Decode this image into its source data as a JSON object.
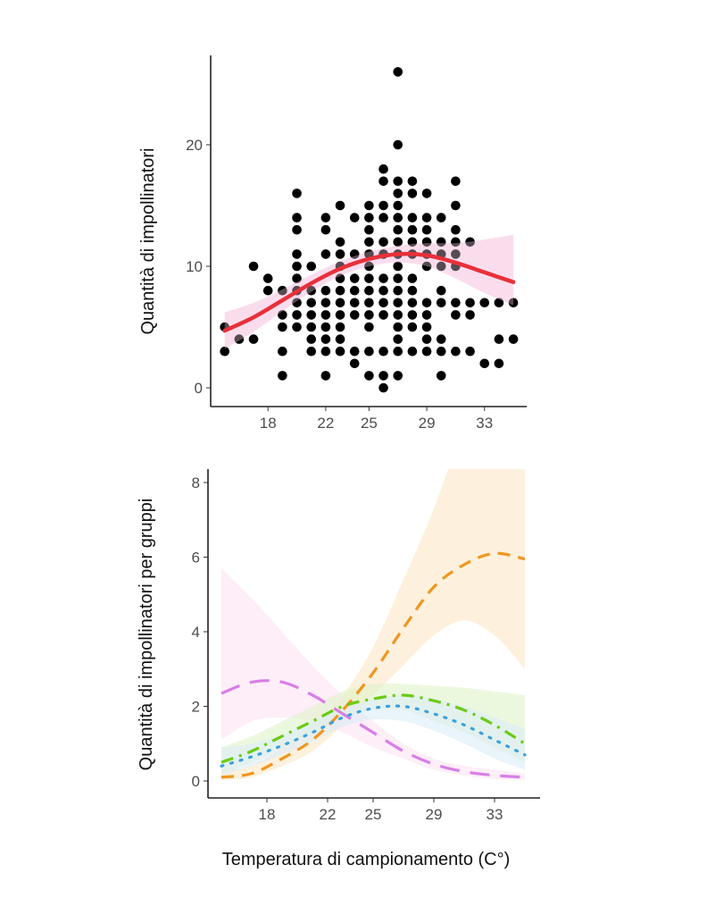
{
  "xlabel": "Temperatura di campionamento (C°)",
  "chart_data": [
    {
      "type": "scatter",
      "title": "",
      "xlabel": "Temperatura di campionamento (C°)",
      "ylabel": "Quantità di impollinatori",
      "xticks": [
        18,
        22,
        25,
        29,
        33
      ],
      "yticks": [
        0,
        10,
        20
      ],
      "xlim": [
        14.3,
        35.8
      ],
      "ylim": [
        -1,
        27
      ],
      "grid": false,
      "point_color": "#000000",
      "points": [
        {
          "x": 15,
          "y": [
            5,
            3
          ]
        },
        {
          "x": 16,
          "y": [
            4
          ]
        },
        {
          "x": 17,
          "y": [
            10,
            4
          ]
        },
        {
          "x": 18,
          "y": [
            9,
            8
          ]
        },
        {
          "x": 19,
          "y": [
            8,
            6,
            5,
            3,
            1
          ]
        },
        {
          "x": 20,
          "y": [
            16,
            14,
            13,
            11,
            10,
            9,
            8,
            7,
            6,
            5
          ]
        },
        {
          "x": 21,
          "y": [
            10,
            8,
            7,
            6,
            5,
            4,
            3
          ]
        },
        {
          "x": 22,
          "y": [
            14,
            13,
            11,
            8,
            7,
            6,
            5,
            4,
            3,
            1
          ]
        },
        {
          "x": 23,
          "y": [
            15,
            12,
            11,
            10,
            9,
            8,
            7,
            6,
            5,
            4,
            3
          ]
        },
        {
          "x": 24,
          "y": [
            14,
            11,
            9,
            8,
            7,
            6,
            3,
            2
          ]
        },
        {
          "x": 25,
          "y": [
            15,
            14,
            13,
            12,
            11,
            10,
            9,
            8,
            7,
            6,
            5,
            3,
            1
          ]
        },
        {
          "x": 26,
          "y": [
            18,
            17,
            15,
            14,
            12,
            11,
            9,
            8,
            7,
            6,
            3,
            1,
            0
          ]
        },
        {
          "x": 27,
          "y": [
            26,
            20,
            17,
            16,
            15,
            14,
            13,
            12,
            11,
            10,
            9,
            8,
            7,
            6,
            5,
            4,
            3,
            1
          ]
        },
        {
          "x": 28,
          "y": [
            17,
            16,
            14,
            13,
            12,
            11,
            9,
            8,
            7,
            6,
            5,
            3
          ]
        },
        {
          "x": 29,
          "y": [
            16,
            14,
            13,
            12,
            11,
            10,
            7,
            6,
            5,
            4,
            3
          ]
        },
        {
          "x": 30,
          "y": [
            14,
            12,
            11,
            10,
            8,
            7,
            4,
            3,
            1
          ]
        },
        {
          "x": 31,
          "y": [
            17,
            15,
            13,
            12,
            11,
            10,
            7,
            6,
            3
          ]
        },
        {
          "x": 32,
          "y": [
            12,
            7,
            6,
            3
          ]
        },
        {
          "x": 33,
          "y": [
            7,
            2
          ]
        },
        {
          "x": 34,
          "y": [
            7,
            4,
            2
          ]
        },
        {
          "x": 35,
          "y": [
            7,
            4
          ]
        }
      ],
      "fit": {
        "color": "#e8303a",
        "band_color": "#f9d6ea",
        "x": [
          15,
          17,
          19,
          21,
          23,
          25,
          27,
          29,
          31,
          33,
          35
        ],
        "y": [
          4.7,
          5.8,
          7.2,
          8.6,
          9.8,
          10.6,
          11.0,
          10.9,
          10.3,
          9.5,
          8.7
        ],
        "lower": [
          3.2,
          4.6,
          6.3,
          7.9,
          9.2,
          10.0,
          10.3,
          10.0,
          9.0,
          7.8,
          6.8
        ],
        "upper": [
          6.2,
          7.0,
          8.1,
          9.3,
          10.4,
          11.2,
          11.7,
          11.9,
          11.9,
          12.2,
          12.6
        ]
      }
    },
    {
      "type": "line",
      "title": "",
      "xlabel": "Temperatura di campionamento (C°)",
      "ylabel": "Quantità di impollinatori per gruppi",
      "xticks": [
        18,
        22,
        25,
        29,
        33
      ],
      "yticks": [
        0,
        2,
        4,
        6,
        8
      ],
      "xlim": [
        14.1,
        36
      ],
      "ylim": [
        -0.45,
        8.4
      ],
      "grid": false,
      "x": [
        15,
        17,
        19,
        21,
        23,
        25,
        27,
        29,
        31,
        33,
        35
      ],
      "series": [
        {
          "name": "orange",
          "color": "#f0961e",
          "band": "#fbe7c6",
          "dash": "14 9",
          "values": [
            0.1,
            0.2,
            0.6,
            1.1,
            1.9,
            2.9,
            4.1,
            5.2,
            5.8,
            6.1,
            5.95
          ],
          "lower": [
            0.02,
            0.1,
            0.4,
            0.8,
            1.5,
            2.3,
            3.1,
            3.9,
            4.3,
            3.9,
            3.0
          ],
          "upper": [
            0.3,
            0.4,
            0.9,
            1.5,
            2.3,
            3.6,
            5.4,
            7.3,
            9.5,
            11,
            12
          ]
        },
        {
          "name": "pink",
          "color": "#d77ee6",
          "band": "#fbe3f3",
          "dash": "22 12",
          "values": [
            2.35,
            2.65,
            2.65,
            2.3,
            1.8,
            1.3,
            0.8,
            0.45,
            0.25,
            0.15,
            0.1
          ],
          "lower": [
            1.1,
            1.6,
            1.7,
            1.6,
            1.3,
            0.9,
            0.6,
            0.3,
            0.15,
            0.05,
            0.02
          ],
          "upper": [
            5.7,
            4.9,
            4.0,
            3.1,
            2.3,
            1.6,
            1.0,
            0.6,
            0.4,
            0.3,
            0.2
          ]
        },
        {
          "name": "green",
          "color": "#6bcb12",
          "band": "#dff3c8",
          "dash": "14 7 3 7",
          "values": [
            0.5,
            0.8,
            1.2,
            1.6,
            2.0,
            2.2,
            2.3,
            2.15,
            1.9,
            1.5,
            1.0
          ],
          "lower": [
            0.2,
            0.5,
            0.9,
            1.3,
            1.7,
            1.9,
            1.9,
            1.6,
            1.3,
            0.9,
            0.5
          ],
          "upper": [
            0.9,
            1.2,
            1.6,
            2.0,
            2.4,
            2.6,
            2.6,
            2.55,
            2.5,
            2.4,
            2.3
          ]
        },
        {
          "name": "blue",
          "color": "#3aa0e0",
          "band": "#dcecf9",
          "dash": "2 9",
          "values": [
            0.4,
            0.65,
            0.95,
            1.3,
            1.7,
            1.95,
            2.0,
            1.8,
            1.5,
            1.1,
            0.7
          ],
          "lower": [
            0.15,
            0.4,
            0.7,
            1.05,
            1.45,
            1.65,
            1.6,
            1.35,
            1.0,
            0.6,
            0.3
          ],
          "upper": [
            0.9,
            1.0,
            1.25,
            1.6,
            1.95,
            2.2,
            2.3,
            2.2,
            2.0,
            1.7,
            1.4
          ]
        }
      ]
    }
  ]
}
